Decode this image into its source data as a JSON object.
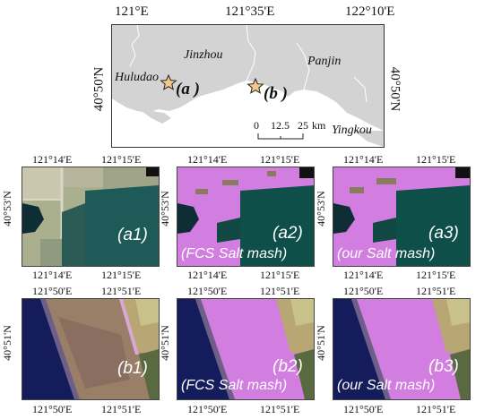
{
  "overview": {
    "top_ticks": [
      "121°E",
      "121°35'E",
      "122°10'E"
    ],
    "left_tick": "40°50'N",
    "right_tick": "40°50'N",
    "cities": [
      "Jinzhou",
      "Panjin",
      "Huludao",
      "Yingkou"
    ],
    "sites": [
      "a",
      "b"
    ],
    "scale_labels": [
      "0",
      "12.5",
      "25",
      "km"
    ]
  },
  "row_a": {
    "top_ticks": [
      "121°14'E",
      "121°15'E"
    ],
    "bottom_ticks": [
      "121°14'E",
      "121°15'E"
    ],
    "lat_tick": "40°53'N",
    "panels": [
      {
        "label": "(a1)"
      },
      {
        "label": "(a2)",
        "caption": "(FCS Salt mash)"
      },
      {
        "label": "(a3)",
        "caption": "(our Salt mash)"
      }
    ]
  },
  "row_b": {
    "top_ticks": [
      "121°50'E",
      "121°51'E"
    ],
    "bottom_ticks": [
      "121°50'E",
      "121°51'E"
    ],
    "lat_tick": "40°51'N",
    "panels": [
      {
        "label": "(b1)"
      },
      {
        "label": "(b2)",
        "caption": "(FCS Salt mash)"
      },
      {
        "label": "(b3)",
        "caption": "(our Salt mash)"
      }
    ]
  },
  "colors": {
    "sea": "#ffffff",
    "land": "#d3d3d3",
    "saltmarsh": "#d27ee0",
    "water_dark": "#0f4f4a",
    "marker_star": "#f4c689"
  }
}
